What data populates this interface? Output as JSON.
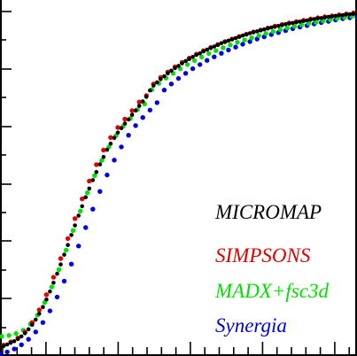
{
  "chart_data": {
    "type": "scatter",
    "title": "",
    "xlabel": "",
    "ylabel": "",
    "xlim": [
      0,
      1
    ],
    "ylim": [
      0,
      1.1
    ],
    "grid": false,
    "legend_placement": "bottom-right",
    "series": [
      {
        "name": "MICROMAP",
        "color": "#000000",
        "x": [
          0.0,
          0.01,
          0.02,
          0.03,
          0.04,
          0.05,
          0.06,
          0.07,
          0.08,
          0.09,
          0.1,
          0.11,
          0.12,
          0.13,
          0.14,
          0.15,
          0.16,
          0.17,
          0.18,
          0.19,
          0.2,
          0.21,
          0.22,
          0.23,
          0.24,
          0.25,
          0.26,
          0.27,
          0.28,
          0.29,
          0.3,
          0.31,
          0.32,
          0.33,
          0.34,
          0.35,
          0.36,
          0.37,
          0.38,
          0.39,
          0.4,
          0.41,
          0.42,
          0.43,
          0.44,
          0.45,
          0.46,
          0.47,
          0.48,
          0.49,
          0.5,
          0.51,
          0.52,
          0.53,
          0.54,
          0.55,
          0.56,
          0.57,
          0.58,
          0.59,
          0.6,
          0.61,
          0.62,
          0.63,
          0.64,
          0.65,
          0.66,
          0.67,
          0.68,
          0.69,
          0.7,
          0.71,
          0.72,
          0.73,
          0.74,
          0.75,
          0.76,
          0.77,
          0.78,
          0.79,
          0.8,
          0.81,
          0.82,
          0.83,
          0.84,
          0.85,
          0.86,
          0.87,
          0.88,
          0.89,
          0.9,
          0.91,
          0.92,
          0.93,
          0.94,
          0.95,
          0.96,
          0.97,
          0.98,
          0.99,
          1.0
        ],
        "y": [
          0.025,
          0.028,
          0.033,
          0.038,
          0.043,
          0.05,
          0.058,
          0.068,
          0.08,
          0.094,
          0.11,
          0.128,
          0.149,
          0.172,
          0.197,
          0.224,
          0.252,
          0.281,
          0.311,
          0.341,
          0.372,
          0.402,
          0.432,
          0.461,
          0.489,
          0.516,
          0.542,
          0.567,
          0.591,
          0.614,
          0.636,
          0.655,
          0.673,
          0.689,
          0.703,
          0.717,
          0.73,
          0.744,
          0.758,
          0.772,
          0.786,
          0.8,
          0.82,
          0.835,
          0.845,
          0.855,
          0.864,
          0.873,
          0.881,
          0.889,
          0.896,
          0.904,
          0.911,
          0.917,
          0.924,
          0.93,
          0.935,
          0.941,
          0.946,
          0.951,
          0.956,
          0.961,
          0.966,
          0.97,
          0.974,
          0.978,
          0.982,
          0.986,
          0.99,
          0.993,
          0.997,
          1.0,
          1.003,
          1.006,
          1.009,
          1.012,
          1.015,
          1.017,
          1.02,
          1.022,
          1.025,
          1.027,
          1.029,
          1.031,
          1.033,
          1.035,
          1.037,
          1.039,
          1.041,
          1.043,
          1.044,
          1.046,
          1.048,
          1.049,
          1.051,
          1.052,
          1.053,
          1.055,
          1.056,
          1.057,
          1.058
        ]
      },
      {
        "name": "SIMPSONS",
        "color": "#e00000",
        "x": [
          0.01,
          0.03,
          0.05,
          0.07,
          0.09,
          0.11,
          0.13,
          0.15,
          0.17,
          0.19,
          0.21,
          0.23,
          0.25,
          0.27,
          0.29,
          0.31,
          0.33,
          0.35,
          0.37,
          0.39,
          0.41,
          0.43,
          0.45,
          0.47,
          0.49,
          0.51,
          0.53,
          0.55,
          0.57,
          0.59,
          0.61,
          0.63,
          0.65,
          0.67,
          0.69,
          0.71,
          0.73,
          0.75,
          0.77,
          0.79,
          0.81,
          0.83,
          0.85,
          0.87,
          0.89,
          0.91,
          0.93,
          0.95,
          0.97,
          0.99
        ],
        "y": [
          0.031,
          0.041,
          0.053,
          0.072,
          0.101,
          0.14,
          0.187,
          0.241,
          0.299,
          0.361,
          0.423,
          0.484,
          0.539,
          0.59,
          0.635,
          0.674,
          0.705,
          0.731,
          0.757,
          0.784,
          0.804,
          0.84,
          0.86,
          0.877,
          0.893,
          0.907,
          0.92,
          0.932,
          0.943,
          0.953,
          0.962,
          0.971,
          0.979,
          0.987,
          0.994,
          1.001,
          1.007,
          1.013,
          1.019,
          1.024,
          1.029,
          1.033,
          1.037,
          1.041,
          1.045,
          1.048,
          1.051,
          1.054,
          1.057,
          1.06
        ]
      },
      {
        "name": "MADX+fsc3d",
        "color": "#00e000",
        "x": [
          0.005,
          0.025,
          0.045,
          0.065,
          0.085,
          0.105,
          0.125,
          0.145,
          0.165,
          0.185,
          0.205,
          0.225,
          0.245,
          0.265,
          0.285,
          0.305,
          0.325,
          0.345,
          0.365,
          0.385,
          0.405,
          0.425,
          0.445,
          0.465,
          0.485,
          0.505,
          0.525,
          0.545,
          0.565,
          0.585,
          0.605,
          0.625,
          0.645,
          0.665,
          0.685,
          0.705,
          0.725,
          0.745,
          0.765,
          0.785,
          0.805,
          0.825,
          0.845,
          0.865,
          0.885,
          0.905,
          0.925,
          0.945,
          0.965,
          0.985
        ],
        "y": [
          0.058,
          0.061,
          0.067,
          0.077,
          0.096,
          0.124,
          0.163,
          0.211,
          0.265,
          0.325,
          0.386,
          0.446,
          0.503,
          0.556,
          0.603,
          0.645,
          0.68,
          0.709,
          0.733,
          0.76,
          0.778,
          0.822,
          0.842,
          0.858,
          0.873,
          0.887,
          0.9,
          0.912,
          0.923,
          0.934,
          0.943,
          0.952,
          0.961,
          0.969,
          0.976,
          0.983,
          0.99,
          0.996,
          1.002,
          1.008,
          1.013,
          1.018,
          1.023,
          1.027,
          1.031,
          1.035,
          1.039,
          1.042,
          1.046,
          1.049
        ]
      },
      {
        "name": "Synergia",
        "color": "#0000e0",
        "x": [
          0.0,
          0.02,
          0.04,
          0.06,
          0.08,
          0.1,
          0.12,
          0.14,
          0.16,
          0.18,
          0.2,
          0.22,
          0.24,
          0.26,
          0.28,
          0.3,
          0.32,
          0.34,
          0.36,
          0.38,
          0.4,
          0.42,
          0.44,
          0.46,
          0.48,
          0.5,
          0.52,
          0.54,
          0.56,
          0.58,
          0.6,
          0.62,
          0.64,
          0.66,
          0.68,
          0.7,
          0.72,
          0.74,
          0.76,
          0.78,
          0.8,
          0.82,
          0.84,
          0.86,
          0.88,
          0.9,
          0.92,
          0.94,
          0.96,
          0.98,
          1.0
        ],
        "y": [
          0.003,
          0.01,
          0.019,
          0.032,
          0.049,
          0.072,
          0.101,
          0.137,
          0.18,
          0.229,
          0.282,
          0.338,
          0.395,
          0.452,
          0.507,
          0.558,
          0.604,
          0.645,
          0.681,
          0.711,
          0.736,
          0.759,
          0.782,
          0.821,
          0.84,
          0.857,
          0.873,
          0.887,
          0.9,
          0.913,
          0.924,
          0.935,
          0.945,
          0.954,
          0.963,
          0.971,
          0.979,
          0.986,
          0.993,
          0.999,
          1.005,
          1.011,
          1.016,
          1.021,
          1.026,
          1.03,
          1.034,
          1.038,
          1.042,
          1.045,
          1.048
        ]
      }
    ]
  }
}
